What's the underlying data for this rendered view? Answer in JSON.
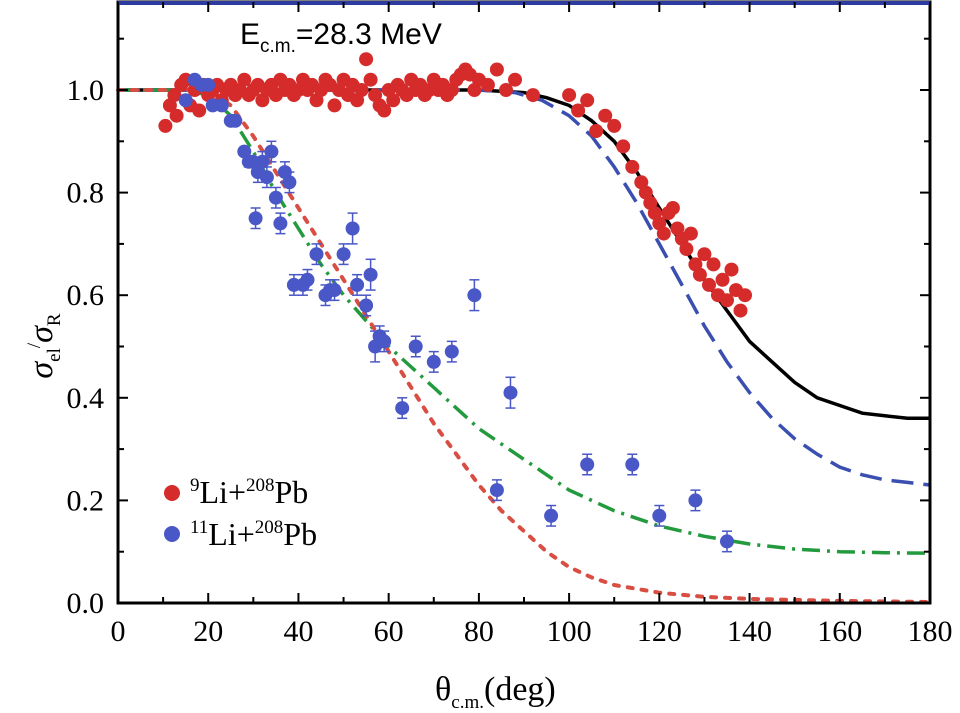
{
  "chart_data": {
    "type": "scatter",
    "annotation": {
      "prefix": "E",
      "sub": "c.m.",
      "value": "=28.3 MeV"
    },
    "xlabel": {
      "main": "θ",
      "sub": "c.m.",
      "unit": "(deg)"
    },
    "ylabel": {
      "s1": "σ",
      "s1sub": "el",
      "slash": "/",
      "s2": "σ",
      "s2sub": "R"
    },
    "xlim": [
      0,
      180
    ],
    "ylim": [
      0,
      1.0
    ],
    "xticks": [
      "0",
      "20",
      "40",
      "60",
      "80",
      "100",
      "120",
      "140",
      "160",
      "180"
    ],
    "yticks": [
      "0.0",
      "0.2",
      "0.4",
      "0.6",
      "0.8",
      "1.0"
    ],
    "legend_position": "bottom-left",
    "colors": {
      "li9": "#d52b2b",
      "li11": "#4a57c7",
      "black": "#000000",
      "blue_dash": "#3a4fb0",
      "green": "#239a3d",
      "red_dot": "#d94e43"
    },
    "series": [
      {
        "key": "li9",
        "label": {
          "m": "9",
          "base": "Li+",
          "m2": "208",
          "el": "Pb"
        },
        "points": [
          [
            10.5,
            0.93
          ],
          [
            11.5,
            0.97
          ],
          [
            12.5,
            0.99
          ],
          [
            13,
            0.95
          ],
          [
            14,
            1.01
          ],
          [
            15,
            1.02
          ],
          [
            16,
            0.97
          ],
          [
            17,
            1.0
          ],
          [
            18,
            0.96
          ],
          [
            19,
            1.01
          ],
          [
            20,
            0.99
          ],
          [
            21,
            1.0
          ],
          [
            22,
            1.01
          ],
          [
            23,
            0.98
          ],
          [
            24,
            1.0
          ],
          [
            25,
            1.01
          ],
          [
            26,
            0.99
          ],
          [
            27,
            1.0
          ],
          [
            28,
            1.02
          ],
          [
            29,
            0.99
          ],
          [
            30,
            1.0
          ],
          [
            31,
            1.01
          ],
          [
            32,
            0.98
          ],
          [
            33,
            1.0
          ],
          [
            34,
            1.01
          ],
          [
            35,
            0.99
          ],
          [
            36,
            1.02
          ],
          [
            37,
            1.0
          ],
          [
            38,
            1.01
          ],
          [
            39,
            0.99
          ],
          [
            40,
            1.0
          ],
          [
            41,
            1.02
          ],
          [
            42,
            1.0
          ],
          [
            43,
            1.01
          ],
          [
            44,
            0.98
          ],
          [
            45,
            1.0
          ],
          [
            46,
            1.02
          ],
          [
            47,
            1.01
          ],
          [
            48,
            0.97
          ],
          [
            49,
            1.0
          ],
          [
            50,
            1.02
          ],
          [
            51,
            0.99
          ],
          [
            52,
            1.01
          ],
          [
            53,
            0.98
          ],
          [
            54,
            1.0
          ],
          [
            55,
            1.06
          ],
          [
            56,
            1.02
          ],
          [
            57,
            0.99
          ],
          [
            58,
            0.97
          ],
          [
            59,
            0.96
          ],
          [
            60,
            1.0
          ],
          [
            61,
            0.98
          ],
          [
            62,
            1.01
          ],
          [
            63,
            1.0
          ],
          [
            64,
            0.99
          ],
          [
            65,
            1.02
          ],
          [
            66,
            1.0
          ],
          [
            67,
            1.01
          ],
          [
            68,
            0.99
          ],
          [
            69,
            1.0
          ],
          [
            70,
            1.02
          ],
          [
            71,
            1.0
          ],
          [
            72,
            1.01
          ],
          [
            73,
            0.99
          ],
          [
            74,
            1.0
          ],
          [
            75,
            1.02
          ],
          [
            76,
            1.03
          ],
          [
            77,
            1.04
          ],
          [
            78,
            1.03
          ],
          [
            79,
            1.0
          ],
          [
            80,
            1.02
          ],
          [
            82,
            1.01
          ],
          [
            84,
            1.04
          ],
          [
            86,
            1.0
          ],
          [
            88,
            1.02
          ],
          [
            92,
            0.99
          ],
          [
            100,
            0.99
          ],
          [
            102,
            0.96
          ],
          [
            104,
            0.98
          ],
          [
            106,
            0.92
          ],
          [
            108,
            0.95
          ],
          [
            110,
            0.93
          ],
          [
            112,
            0.89
          ],
          [
            114,
            0.85
          ],
          [
            116,
            0.82
          ],
          [
            117,
            0.8
          ],
          [
            118,
            0.78
          ],
          [
            119,
            0.76
          ],
          [
            120,
            0.74
          ],
          [
            121,
            0.72
          ],
          [
            122,
            0.76
          ],
          [
            123,
            0.77
          ],
          [
            124,
            0.73
          ],
          [
            125,
            0.71
          ],
          [
            126,
            0.69
          ],
          [
            127,
            0.72
          ],
          [
            128,
            0.66
          ],
          [
            129,
            0.64
          ],
          [
            130,
            0.68
          ],
          [
            131,
            0.62
          ],
          [
            132,
            0.66
          ],
          [
            133,
            0.6
          ],
          [
            134,
            0.63
          ],
          [
            135,
            0.59
          ],
          [
            136,
            0.65
          ],
          [
            137,
            0.61
          ],
          [
            138,
            0.57
          ],
          [
            139,
            0.6
          ]
        ]
      },
      {
        "key": "li11",
        "label": {
          "m": "11",
          "base": "Li+",
          "m2": "208",
          "el": "Pb"
        },
        "points": [
          [
            15,
            0.98,
            0
          ],
          [
            17,
            1.02,
            0
          ],
          [
            18.5,
            1.01,
            0
          ],
          [
            20,
            1.01,
            0
          ],
          [
            21,
            0.97,
            0
          ],
          [
            23,
            0.97,
            0
          ],
          [
            25,
            0.94,
            0
          ],
          [
            26,
            0.94,
            0
          ],
          [
            28,
            0.88,
            0
          ],
          [
            29,
            0.86,
            0.01
          ],
          [
            30,
            0.86,
            0
          ],
          [
            30.5,
            0.75,
            0.02
          ],
          [
            31,
            0.84,
            0.02
          ],
          [
            32,
            0.86,
            0.02
          ],
          [
            33,
            0.83,
            0.02
          ],
          [
            34,
            0.88,
            0.02
          ],
          [
            35,
            0.79,
            0.02
          ],
          [
            36,
            0.74,
            0.02
          ],
          [
            37,
            0.84,
            0.02
          ],
          [
            38,
            0.82,
            0.02
          ],
          [
            39,
            0.62,
            0.02
          ],
          [
            41,
            0.62,
            0.02
          ],
          [
            42,
            0.63,
            0.02
          ],
          [
            44,
            0.68,
            0.02
          ],
          [
            46,
            0.6,
            0.02
          ],
          [
            47,
            0.61,
            0.02
          ],
          [
            48,
            0.61,
            0.02
          ],
          [
            50,
            0.68,
            0.02
          ],
          [
            52,
            0.73,
            0.03
          ],
          [
            53,
            0.62,
            0.02
          ],
          [
            55,
            0.58,
            0.02
          ],
          [
            56,
            0.64,
            0.03
          ],
          [
            57,
            0.5,
            0.03
          ],
          [
            58,
            0.52,
            0.02
          ],
          [
            59,
            0.51,
            0.02
          ],
          [
            63,
            0.38,
            0.02
          ],
          [
            66,
            0.5,
            0.02
          ],
          [
            70,
            0.47,
            0.02
          ],
          [
            74,
            0.49,
            0.02
          ],
          [
            79,
            0.6,
            0.03
          ],
          [
            84,
            0.22,
            0.02
          ],
          [
            87,
            0.41,
            0.03
          ],
          [
            96,
            0.17,
            0.02
          ],
          [
            104,
            0.27,
            0.02
          ],
          [
            114,
            0.27,
            0.02
          ],
          [
            120,
            0.17,
            0.02
          ],
          [
            128,
            0.2,
            0.02
          ],
          [
            135,
            0.12,
            0.02
          ]
        ]
      }
    ],
    "curves": [
      {
        "key": "black_solid",
        "style": "solid",
        "color": "#000000",
        "points": [
          [
            0,
            1.0
          ],
          [
            20,
            1.0
          ],
          [
            40,
            1.0
          ],
          [
            60,
            1.0
          ],
          [
            80,
            1.0
          ],
          [
            90,
            0.995
          ],
          [
            95,
            0.985
          ],
          [
            100,
            0.97
          ],
          [
            105,
            0.94
          ],
          [
            110,
            0.9
          ],
          [
            115,
            0.84
          ],
          [
            120,
            0.77
          ],
          [
            125,
            0.7
          ],
          [
            130,
            0.63
          ],
          [
            135,
            0.57
          ],
          [
            140,
            0.51
          ],
          [
            145,
            0.47
          ],
          [
            150,
            0.43
          ],
          [
            155,
            0.4
          ],
          [
            160,
            0.385
          ],
          [
            165,
            0.37
          ],
          [
            170,
            0.365
          ],
          [
            175,
            0.36
          ],
          [
            180,
            0.36
          ]
        ]
      },
      {
        "key": "blue_dashed",
        "style": "dashed",
        "color": "#3a4fb0",
        "points": [
          [
            0,
            1.0
          ],
          [
            40,
            1.0
          ],
          [
            80,
            1.0
          ],
          [
            88,
            0.995
          ],
          [
            94,
            0.98
          ],
          [
            100,
            0.95
          ],
          [
            105,
            0.91
          ],
          [
            110,
            0.85
          ],
          [
            115,
            0.78
          ],
          [
            120,
            0.7
          ],
          [
            125,
            0.62
          ],
          [
            130,
            0.54
          ],
          [
            135,
            0.47
          ],
          [
            140,
            0.41
          ],
          [
            145,
            0.36
          ],
          [
            150,
            0.32
          ],
          [
            155,
            0.29
          ],
          [
            160,
            0.265
          ],
          [
            165,
            0.25
          ],
          [
            170,
            0.24
          ],
          [
            175,
            0.235
          ],
          [
            180,
            0.23
          ]
        ]
      },
      {
        "key": "green_dashdot",
        "style": "dashdot",
        "color": "#239a3d",
        "points": [
          [
            0,
            1.0
          ],
          [
            15,
            1.0
          ],
          [
            20,
            0.99
          ],
          [
            25,
            0.95
          ],
          [
            30,
            0.88
          ],
          [
            35,
            0.8
          ],
          [
            40,
            0.73
          ],
          [
            45,
            0.66
          ],
          [
            50,
            0.6
          ],
          [
            55,
            0.55
          ],
          [
            60,
            0.5
          ],
          [
            65,
            0.46
          ],
          [
            70,
            0.42
          ],
          [
            75,
            0.38
          ],
          [
            80,
            0.34
          ],
          [
            85,
            0.31
          ],
          [
            90,
            0.28
          ],
          [
            95,
            0.25
          ],
          [
            100,
            0.22
          ],
          [
            110,
            0.18
          ],
          [
            120,
            0.15
          ],
          [
            130,
            0.13
          ],
          [
            140,
            0.115
          ],
          [
            150,
            0.105
          ],
          [
            160,
            0.1
          ],
          [
            170,
            0.098
          ],
          [
            180,
            0.097
          ]
        ]
      },
      {
        "key": "red_dotted",
        "style": "dotted",
        "color": "#d94e43",
        "points": [
          [
            0,
            1.0
          ],
          [
            20,
            1.0
          ],
          [
            25,
            0.97
          ],
          [
            30,
            0.91
          ],
          [
            35,
            0.84
          ],
          [
            40,
            0.77
          ],
          [
            45,
            0.7
          ],
          [
            50,
            0.63
          ],
          [
            55,
            0.56
          ],
          [
            60,
            0.49
          ],
          [
            65,
            0.42
          ],
          [
            70,
            0.35
          ],
          [
            75,
            0.29
          ],
          [
            80,
            0.23
          ],
          [
            85,
            0.18
          ],
          [
            90,
            0.14
          ],
          [
            95,
            0.1
          ],
          [
            100,
            0.07
          ],
          [
            105,
            0.05
          ],
          [
            110,
            0.035
          ],
          [
            120,
            0.02
          ],
          [
            130,
            0.012
          ],
          [
            140,
            0.008
          ],
          [
            160,
            0.004
          ],
          [
            180,
            0.002
          ]
        ]
      }
    ]
  }
}
